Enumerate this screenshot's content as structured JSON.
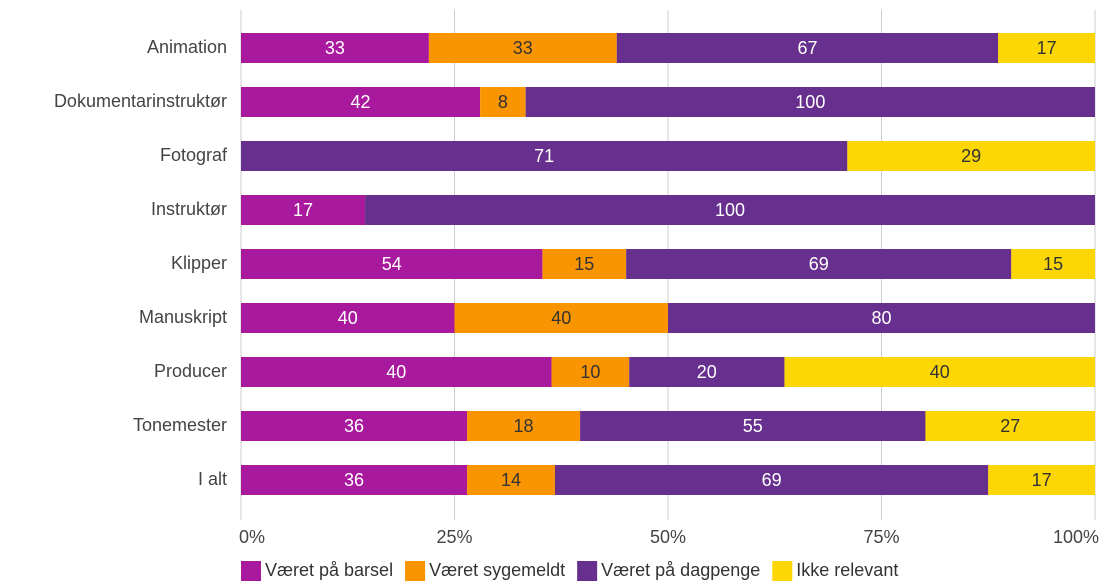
{
  "chart_data": {
    "type": "bar",
    "orientation": "horizontal",
    "stacked": "percent",
    "categories": [
      "Animation",
      "Dokumentarinstruktør",
      "Fotograf",
      "Instruktør",
      "Klipper",
      "Manuskript",
      "Producer",
      "Tonemester",
      "I alt"
    ],
    "series": [
      {
        "name": "Været på barsel",
        "color": "#a8199e",
        "label_color": "#ffffff",
        "values": [
          33,
          42,
          null,
          17,
          54,
          40,
          40,
          36,
          36
        ]
      },
      {
        "name": "Været sygemeldt",
        "color": "#f99500",
        "label_color": "#333333",
        "values": [
          33,
          8,
          null,
          null,
          15,
          40,
          10,
          18,
          14
        ]
      },
      {
        "name": "Været på dagpenge",
        "color": "#67308f",
        "label_color": "#ffffff",
        "values": [
          67,
          100,
          71,
          100,
          69,
          80,
          20,
          55,
          69
        ]
      },
      {
        "name": "Ikke relevant",
        "color": "#fcd703",
        "label_color": "#333333",
        "values": [
          17,
          null,
          29,
          null,
          15,
          null,
          40,
          27,
          17
        ]
      }
    ],
    "xlim": [
      0,
      100
    ],
    "xticks": [
      {
        "value": 0,
        "label": "0%"
      },
      {
        "value": 25,
        "label": "25%"
      },
      {
        "value": 50,
        "label": "50%"
      },
      {
        "value": 75,
        "label": "75%"
      },
      {
        "value": 100,
        "label": "100%"
      }
    ],
    "grid": true,
    "legend": "bottom"
  }
}
